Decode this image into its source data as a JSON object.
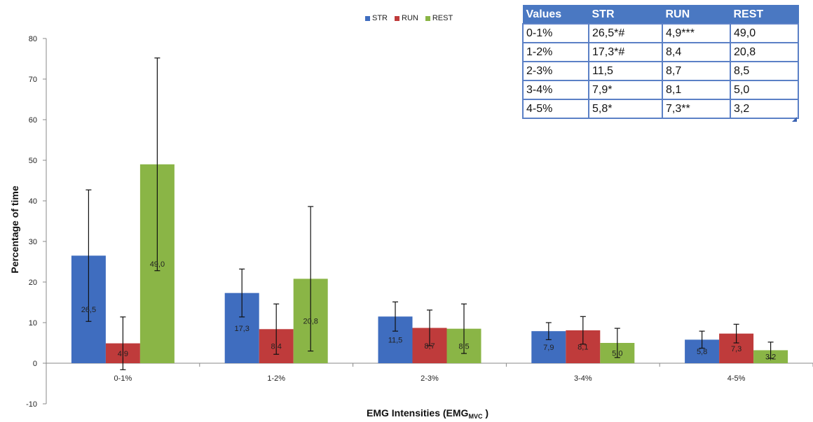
{
  "chart_data": {
    "type": "bar",
    "categories": [
      "0-1%",
      "1-2%",
      "2-3%",
      "3-4%",
      "4-5%"
    ],
    "series": [
      {
        "name": "STR",
        "color": "#3f6dbf",
        "values": [
          26.5,
          17.3,
          11.5,
          7.9,
          5.8
        ],
        "error": [
          16.2,
          5.9,
          3.6,
          2.1,
          2.1
        ],
        "labels": [
          "26,5",
          "17,3",
          "11,5",
          "7,9",
          "5,8"
        ]
      },
      {
        "name": "RUN",
        "color": "#bf3b3b",
        "values": [
          4.9,
          8.4,
          8.7,
          8.1,
          7.3
        ],
        "error": [
          6.5,
          6.2,
          4.4,
          3.4,
          2.3
        ],
        "labels": [
          "4,9",
          "8,4",
          "8,7",
          "8,1",
          "7,3"
        ]
      },
      {
        "name": "REST",
        "color": "#8ab546",
        "values": [
          49.0,
          20.8,
          8.5,
          5.0,
          3.2
        ],
        "error": [
          26.2,
          17.8,
          6.1,
          3.6,
          2.0
        ],
        "labels": [
          "49,0",
          "20,8",
          "8,5",
          "5,0",
          "3,2"
        ]
      }
    ],
    "ylabel": "Percentage of time",
    "xlabel": "EMG Intensities (EMG",
    "xlabel_sub": "MVC",
    "xlabel_end": " )",
    "ylim": [
      -10,
      80
    ],
    "yticks": [
      -10,
      0,
      10,
      20,
      30,
      40,
      50,
      60,
      70,
      80
    ],
    "grid": false,
    "legend": "top-center"
  },
  "table": {
    "headers": [
      "Values",
      "STR",
      "RUN",
      "REST"
    ],
    "rows": [
      [
        "0-1%",
        "26,5*#",
        "4,9***",
        "49,0"
      ],
      [
        "1-2%",
        "17,3*#",
        "8,4",
        "20,8"
      ],
      [
        "2-3%",
        "11,5",
        "8,7",
        "8,5"
      ],
      [
        "3-4%",
        "7,9*",
        "8,1",
        "5,0"
      ],
      [
        "4-5%",
        "5,8*",
        "7,3**",
        "3,2"
      ]
    ]
  }
}
